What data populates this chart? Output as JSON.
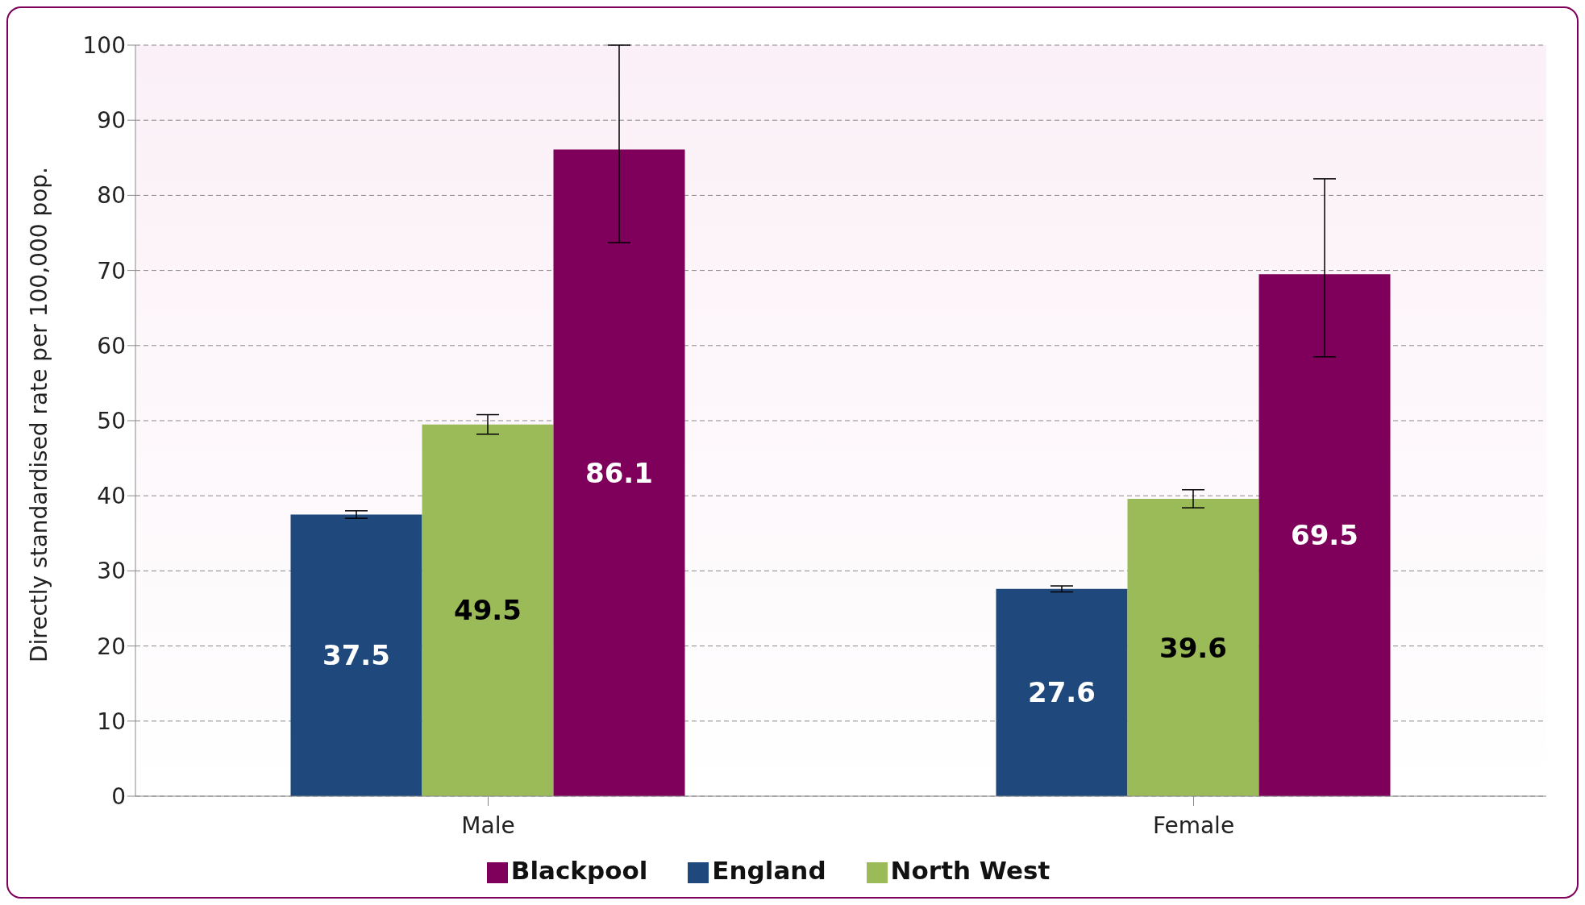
{
  "chart_data": {
    "type": "bar",
    "ylabel": "Directly standardised rate per 100,000 pop.",
    "categories": [
      "Male",
      "Female"
    ],
    "series": [
      {
        "name": "England",
        "color": "#1f497d",
        "values": [
          37.5,
          27.6
        ],
        "errors": [
          [
            37.0,
            38.0
          ],
          [
            27.2,
            28.0
          ]
        ]
      },
      {
        "name": "North West",
        "color": "#9bbb59",
        "values": [
          49.5,
          39.6
        ],
        "errors": [
          [
            48.2,
            50.8
          ],
          [
            38.4,
            40.8
          ]
        ]
      },
      {
        "name": "Blackpool",
        "color": "#7f005a",
        "values": [
          86.1,
          69.5
        ],
        "errors": [
          [
            73.7,
            100.0
          ],
          [
            58.5,
            82.2
          ]
        ]
      }
    ],
    "ylim": [
      0,
      100
    ],
    "yticks": [
      0,
      10,
      20,
      30,
      40,
      50,
      60,
      70,
      80,
      90,
      100
    ],
    "grid": "y",
    "legend": "bottom",
    "data_labels": true
  }
}
